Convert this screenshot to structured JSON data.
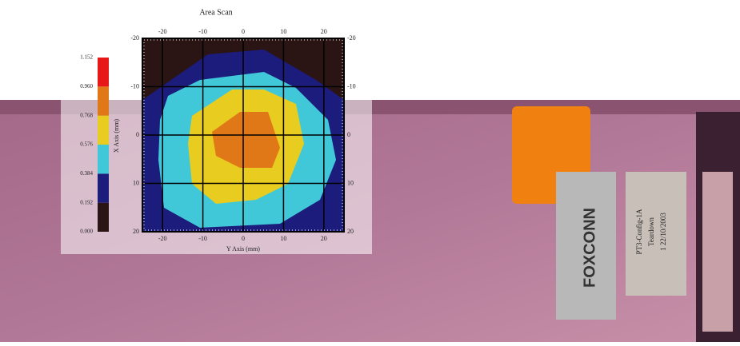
{
  "chart_data": {
    "type": "contour",
    "title": "Area Scan",
    "x_label": "Y Axis (mm)",
    "y_label": "X Axis (mm)",
    "xlim": [
      -25,
      25
    ],
    "ylim": [
      -20,
      20
    ],
    "y_reversed": true,
    "xticks": [
      -20,
      -10,
      0,
      10,
      20
    ],
    "yticks": [
      -20,
      -10,
      0,
      10,
      20
    ],
    "grid": true,
    "levels": [
      {
        "value": 0,
        "label": "0.000"
      },
      {
        "value": 0.192,
        "label": "0.192"
      },
      {
        "value": 0.384,
        "label": "0.384"
      },
      {
        "value": 0.576,
        "label": "0.576"
      },
      {
        "value": 0.768,
        "label": "0.768"
      },
      {
        "value": 0.96,
        "label": "0.960"
      },
      {
        "value": 1.152,
        "label": "1.152"
      }
    ],
    "level_colors": [
      "#2a1414",
      "#1c1c7c",
      "#40c8d8",
      "#e8cc20",
      "#e07818",
      "#e81818"
    ]
  },
  "photo": {
    "labels": [
      "FOXCONN",
      "PT3-Config-1A",
      "Teardown",
      "1 22/10/2003"
    ]
  }
}
